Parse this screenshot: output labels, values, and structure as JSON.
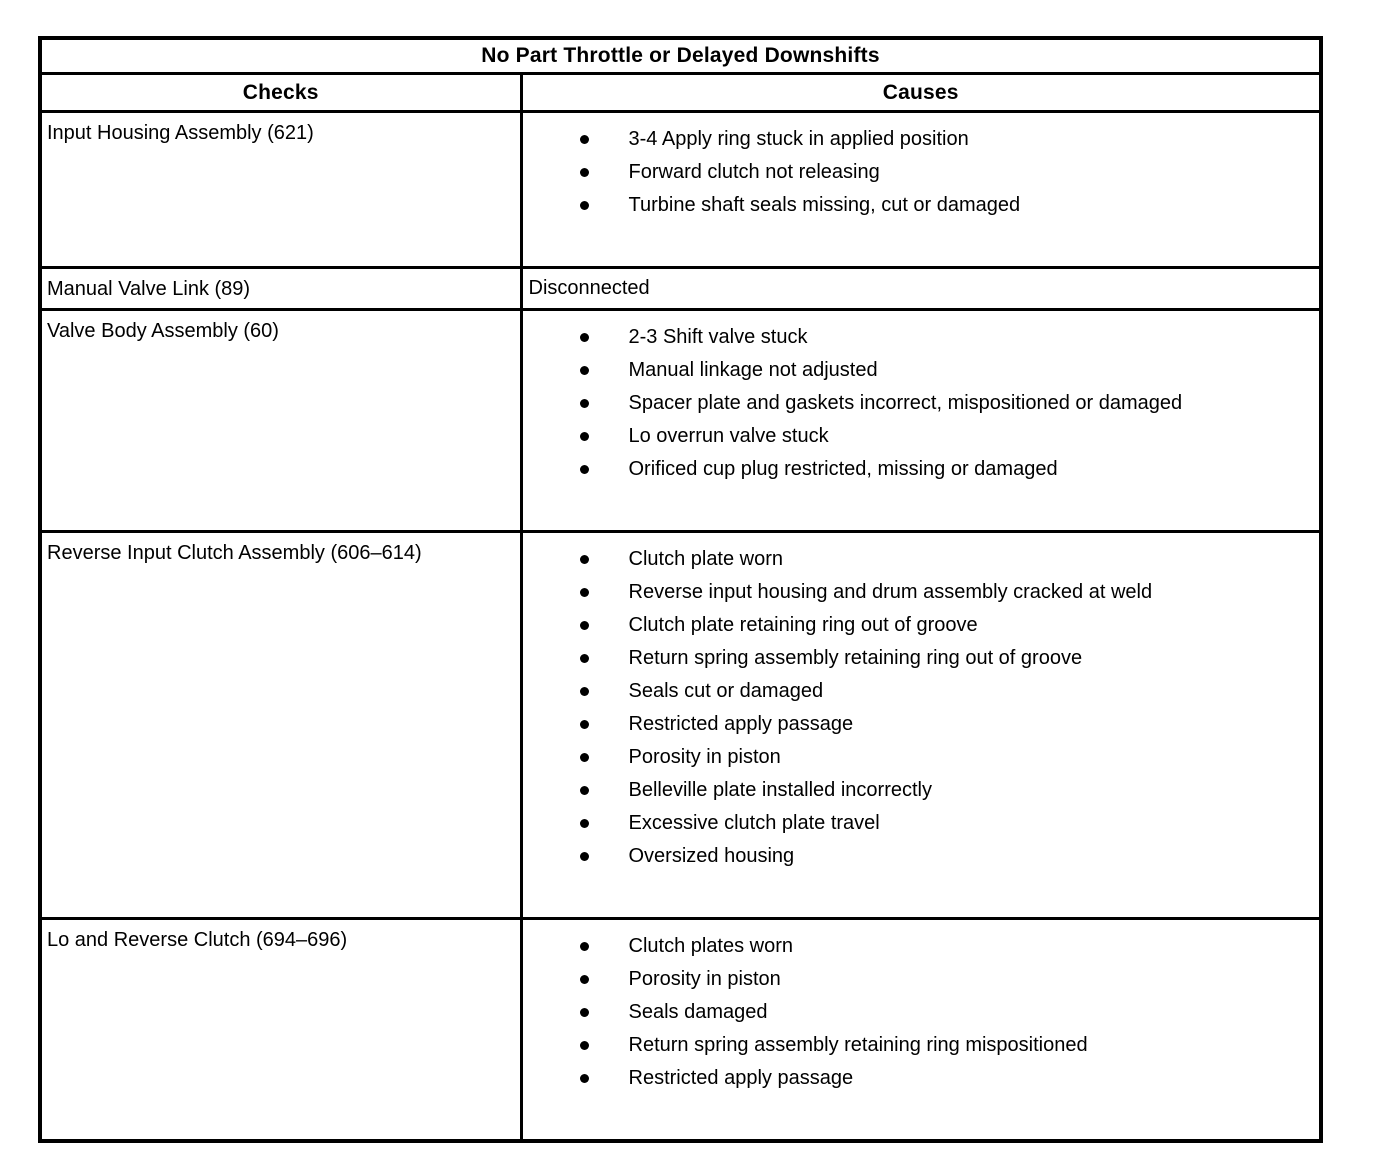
{
  "table": {
    "title": "No Part Throttle or Delayed Downshifts",
    "headers": {
      "checks": "Checks",
      "causes": "Causes"
    },
    "rows": [
      {
        "check": "Input Housing Assembly (621)",
        "bulleted": true,
        "causes": [
          "3-4 Apply ring stuck in applied position",
          "Forward clutch not releasing",
          "Turbine shaft seals missing, cut or damaged"
        ]
      },
      {
        "check": "Manual Valve Link (89)",
        "bulleted": false,
        "causes": [
          "Disconnected"
        ]
      },
      {
        "check": "Valve Body Assembly (60)",
        "bulleted": true,
        "causes": [
          "2-3 Shift valve stuck",
          "Manual linkage not adjusted",
          "Spacer plate and gaskets incorrect, mispositioned or damaged",
          "Lo overrun valve stuck",
          "Orificed cup plug restricted, missing or damaged"
        ]
      },
      {
        "check": "Reverse Input Clutch Assembly (606–614)",
        "bulleted": true,
        "causes": [
          "Clutch plate worn",
          "Reverse input housing and drum assembly cracked at weld",
          "Clutch plate retaining ring out of groove",
          "Return spring assembly retaining ring out of groove",
          "Seals cut or damaged",
          "Restricted apply passage",
          "Porosity in piston",
          "Belleville plate installed incorrectly",
          "Excessive clutch plate travel",
          "Oversized housing"
        ]
      },
      {
        "check": "Lo and Reverse Clutch (694–696)",
        "bulleted": true,
        "causes": [
          "Clutch plates worn",
          "Porosity in piston",
          "Seals damaged",
          "Return spring assembly retaining ring mispositioned",
          "Restricted apply passage"
        ]
      }
    ],
    "colors": {
      "border": "#000000",
      "text": "#000000",
      "background": "#ffffff"
    }
  }
}
